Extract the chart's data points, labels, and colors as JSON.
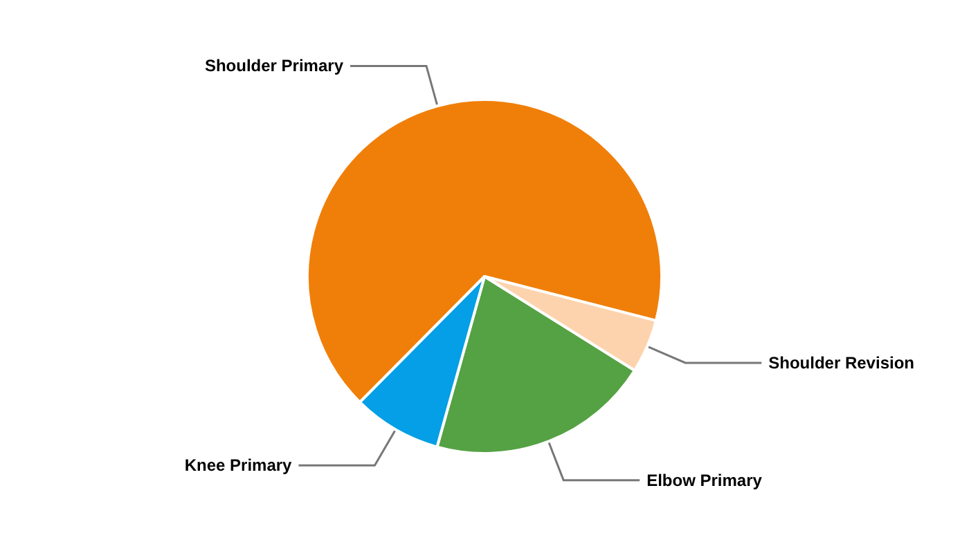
{
  "chart_data": {
    "type": "pie",
    "categories": [
      "Shoulder Primary",
      "Shoulder Revision",
      "Elbow Primary",
      "Knee Primary"
    ],
    "values": [
      66.6,
      4.9,
      20.4,
      8.1
    ],
    "colors": [
      "#f07f09",
      "#fdd3ae",
      "#55a244",
      "#049fe6"
    ]
  }
}
